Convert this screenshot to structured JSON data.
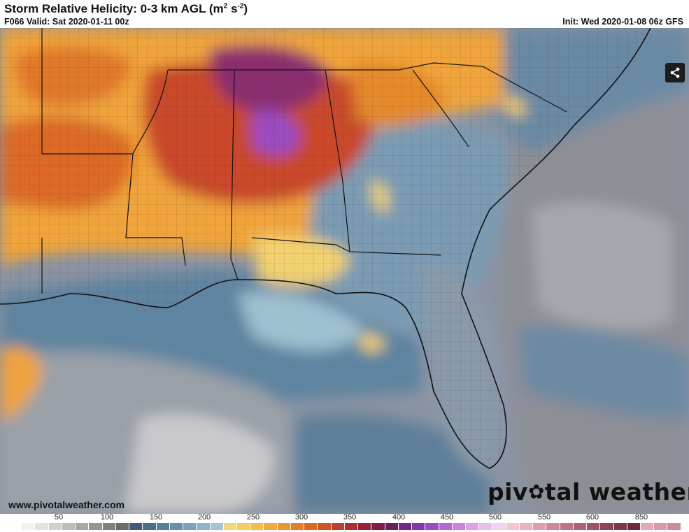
{
  "header": {
    "title_main": "Storm Relative Helicity: 0-3 km AGL (m",
    "title_sup1": "2",
    "title_mid": " s",
    "title_sup2": "-2",
    "title_end": ")",
    "valid": "F066 Valid: Sat 2020-01-11 00z",
    "init": "Init: Wed 2020-01-08 06z GFS"
  },
  "icons": {
    "share": "share-icon",
    "logo_gear": "gear-icon"
  },
  "footer": {
    "url": "www.pivotalweather.com",
    "brand_pre": "piv",
    "brand_gear": "✿",
    "brand_post": "tal weather"
  },
  "legend": {
    "ticks": [
      "50",
      "100",
      "150",
      "200",
      "250",
      "300",
      "350",
      "400",
      "450",
      "500",
      "550",
      "600",
      "850"
    ],
    "colors": [
      "#ffffff",
      "#f2f2f2",
      "#e2e2e2",
      "#d0d0d0",
      "#bcbcbc",
      "#a8a8a8",
      "#949494",
      "#808080",
      "#6c6c6c",
      "#3f5c78",
      "#4b6c8a",
      "#58809c",
      "#6690ad",
      "#79a3bd",
      "#8fb4c9",
      "#a4c4d4",
      "#f0d878",
      "#f3cb63",
      "#f4bc4f",
      "#f3aa3d",
      "#ee962f",
      "#e47f27",
      "#d96a24",
      "#cc5526",
      "#bd402a",
      "#ab302f",
      "#972436",
      "#7f1d45",
      "#6a1e5c",
      "#6e2a8a",
      "#8038ad",
      "#9a4cc2",
      "#b466d2",
      "#c985dd",
      "#d9a3e5",
      "#e6bfeb",
      "#efd2ec",
      "#f0c6cf",
      "#e9b2bd",
      "#dc9ca9",
      "#ce8796",
      "#bf7383",
      "#b06272",
      "#a05263",
      "#8f4454",
      "#7e3747",
      "#6e2b3b",
      "#e6a8b3",
      "#d89aa6",
      "#ca8c99"
    ]
  }
}
